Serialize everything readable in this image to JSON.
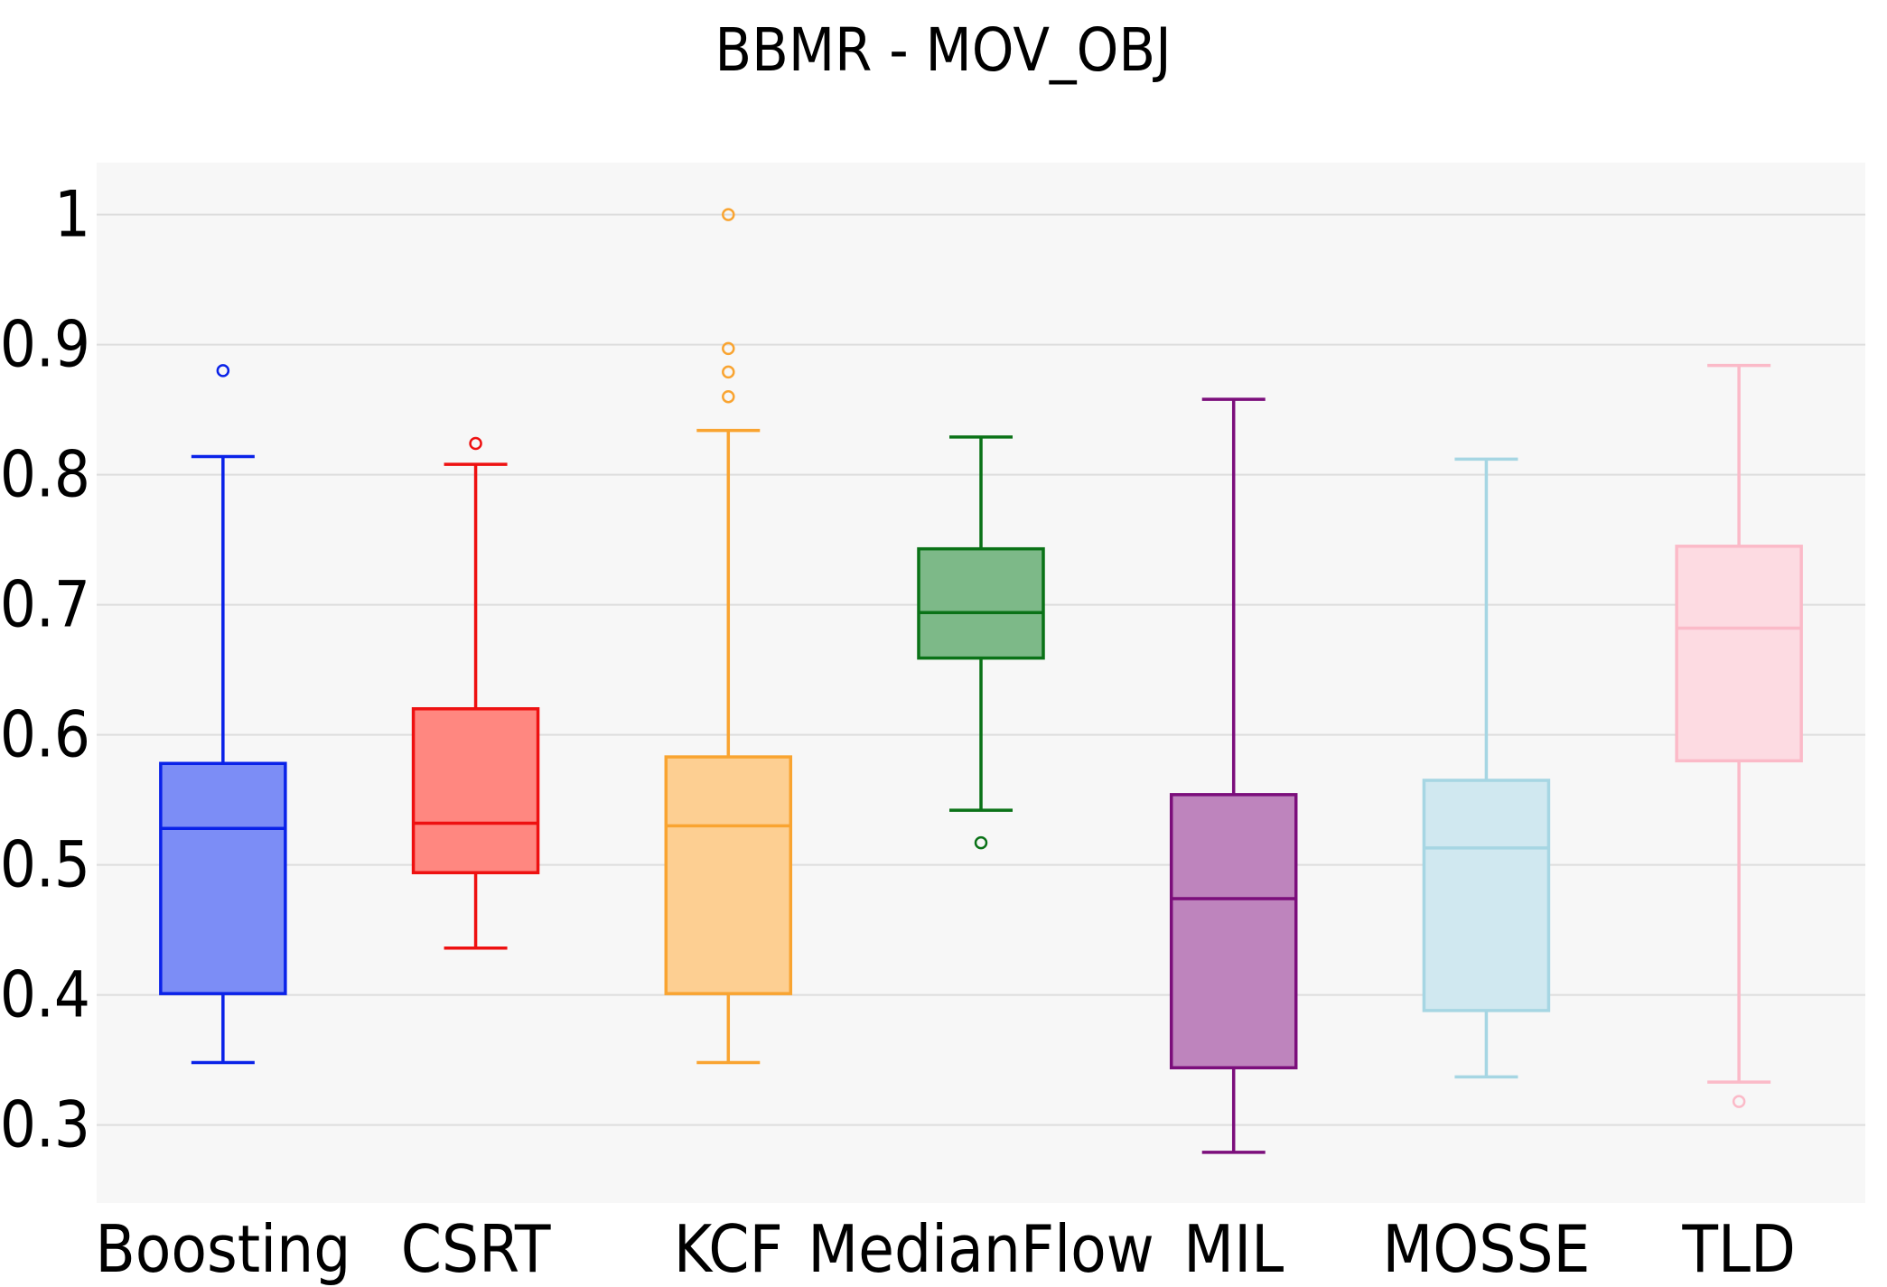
{
  "chart_data": {
    "type": "box",
    "title": "BBMR - MOV_OBJ",
    "xlabel": "",
    "ylabel": "",
    "ylim": [
      0.24,
      1.04
    ],
    "yticks": [
      0.3,
      0.4,
      0.5,
      0.6,
      0.7,
      0.8,
      0.9,
      1
    ],
    "ytick_labels": [
      "0.3",
      "0.4",
      "0.5",
      "0.6",
      "0.7",
      "0.8",
      "0.9",
      "1"
    ],
    "grid": true,
    "legend": "none",
    "background": "#f7f7f7",
    "gridline_color": "#dddddd",
    "categories": [
      "Boosting",
      "CSRT",
      "KCF",
      "MedianFlow",
      "MIL",
      "MOSSE",
      "TLD"
    ],
    "series": [
      {
        "category": "Boosting",
        "color": "#0a22e8",
        "fill": "#7c8df6",
        "whisker_low": 0.348,
        "q1": 0.401,
        "median": 0.528,
        "q3": 0.578,
        "whisker_high": 0.814,
        "outliers": [
          0.88
        ]
      },
      {
        "category": "CSRT",
        "color": "#ee1111",
        "fill": "#ff8780",
        "whisker_low": 0.436,
        "q1": 0.494,
        "median": 0.532,
        "q3": 0.62,
        "whisker_high": 0.808,
        "outliers": [
          0.824
        ]
      },
      {
        "category": "KCF",
        "color": "#f9a431",
        "fill": "#fdcf92",
        "whisker_low": 0.348,
        "q1": 0.401,
        "median": 0.53,
        "q3": 0.583,
        "whisker_high": 0.834,
        "outliers": [
          0.86,
          0.879,
          0.897,
          1.0
        ]
      },
      {
        "category": "MedianFlow",
        "color": "#0a7217",
        "fill": "#7db988",
        "whisker_low": 0.542,
        "q1": 0.659,
        "median": 0.694,
        "q3": 0.743,
        "whisker_high": 0.829,
        "outliers": [
          0.517
        ]
      },
      {
        "category": "MIL",
        "color": "#7b0e7b",
        "fill": "#be84bd",
        "whisker_low": 0.279,
        "q1": 0.344,
        "median": 0.474,
        "q3": 0.554,
        "whisker_high": 0.858,
        "outliers": []
      },
      {
        "category": "MOSSE",
        "color": "#a6d6e3",
        "fill": "#d0e8f0",
        "whisker_low": 0.337,
        "q1": 0.388,
        "median": 0.513,
        "q3": 0.565,
        "whisker_high": 0.812,
        "outliers": []
      },
      {
        "category": "TLD",
        "color": "#fbbac8",
        "fill": "#fddbe2",
        "whisker_low": 0.333,
        "q1": 0.58,
        "median": 0.682,
        "q3": 0.745,
        "whisker_high": 0.884,
        "outliers": [
          0.318
        ]
      }
    ]
  }
}
